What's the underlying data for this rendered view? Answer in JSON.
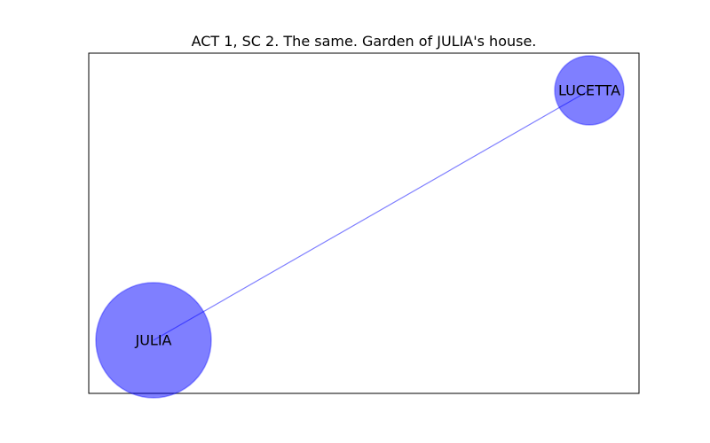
{
  "title": "ACT 1, SC 2. The same. Garden of JULIA's house.",
  "colors": {
    "node_fill": "#0000ff",
    "node_edge": "#0000ff",
    "edge": "#0000ff",
    "frame": "#000000"
  },
  "graph": {
    "nodes": [
      {
        "id": "JULIA",
        "label": "JULIA",
        "weight": 2
      },
      {
        "id": "LUCETTA",
        "label": "LUCETTA",
        "weight": 1
      }
    ],
    "edges": [
      {
        "source": "JULIA",
        "target": "LUCETTA"
      }
    ]
  }
}
